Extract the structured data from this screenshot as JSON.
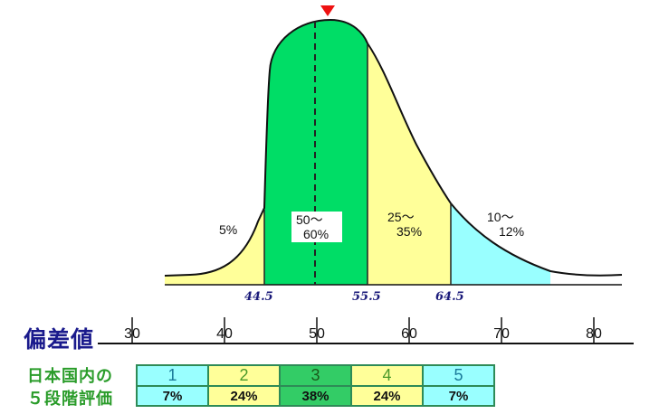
{
  "axis": {
    "title": "偏差値",
    "ticks": [
      30,
      40,
      50,
      60,
      70,
      80
    ],
    "range": [
      25,
      84
    ]
  },
  "boundaries": [
    "44.5",
    "55.5",
    "64.5"
  ],
  "peak_marker_value": 50,
  "curve_labels": [
    {
      "line1": "5%",
      "line2": ""
    },
    {
      "line1": "50～",
      "line2": "60%"
    },
    {
      "line1": "25～",
      "line2": "35%"
    },
    {
      "line1": "10～",
      "line2": "12%"
    }
  ],
  "grades": {
    "title_line1": "日本国内の",
    "title_line2": "５段階評価",
    "columns": [
      {
        "grade": "1",
        "percent": "7%",
        "color": "#99ffff",
        "text_color": "#1a7a9a"
      },
      {
        "grade": "2",
        "percent": "24%",
        "color": "#ffff99",
        "text_color": "#4a9a2a"
      },
      {
        "grade": "3",
        "percent": "38%",
        "color": "#33cc66",
        "text_color": "#1a5a1a"
      },
      {
        "grade": "4",
        "percent": "24%",
        "color": "#ffff99",
        "text_color": "#4a9a2a"
      },
      {
        "grade": "5",
        "percent": "7%",
        "color": "#99ffff",
        "text_color": "#1a7a9a"
      }
    ]
  },
  "colors": {
    "green": "#00dd66",
    "yellow": "#ffff99",
    "cyan": "#99ffff",
    "marker": "#ee1111",
    "boundary_label": "#1a1a7a"
  }
}
